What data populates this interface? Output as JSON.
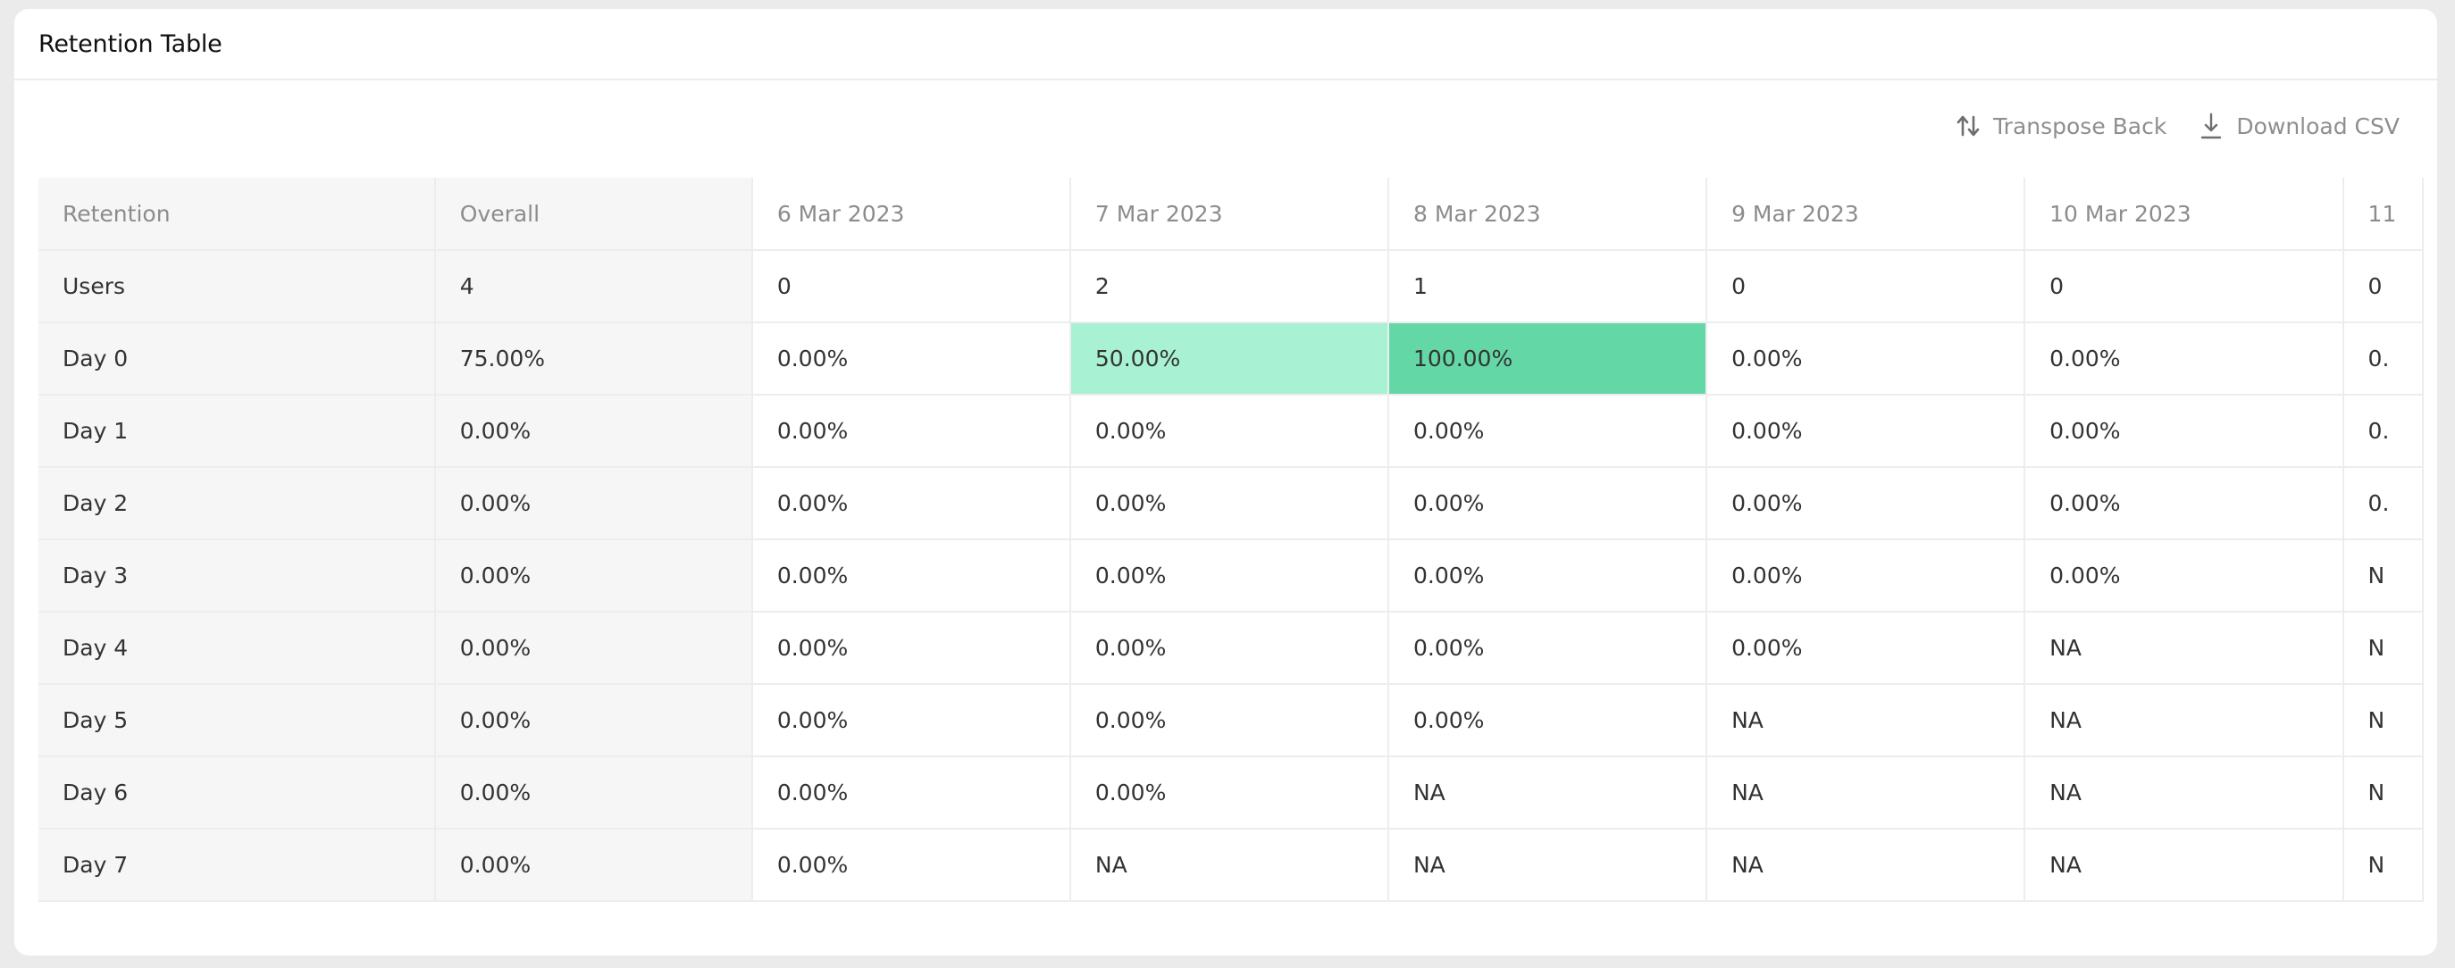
{
  "card": {
    "title": "Retention Table"
  },
  "toolbar": {
    "transpose_label": "Transpose Back",
    "transpose_icon": "transpose-arrows-icon",
    "download_label": "Download CSV",
    "download_icon": "download-icon"
  },
  "table": {
    "headers": [
      "Retention",
      "Overall",
      "6 Mar 2023",
      "7 Mar 2023",
      "8 Mar 2023",
      "9 Mar 2023",
      "10 Mar 2023",
      "11"
    ],
    "rows": [
      {
        "label": "Users",
        "cells": [
          "4",
          "0",
          "2",
          "1",
          "0",
          "0",
          "0"
        ]
      },
      {
        "label": "Day 0",
        "cells": [
          "75.00%",
          "0.00%",
          "50.00%",
          "100.00%",
          "0.00%",
          "0.00%",
          "0."
        ]
      },
      {
        "label": "Day 1",
        "cells": [
          "0.00%",
          "0.00%",
          "0.00%",
          "0.00%",
          "0.00%",
          "0.00%",
          "0."
        ]
      },
      {
        "label": "Day 2",
        "cells": [
          "0.00%",
          "0.00%",
          "0.00%",
          "0.00%",
          "0.00%",
          "0.00%",
          "0."
        ]
      },
      {
        "label": "Day 3",
        "cells": [
          "0.00%",
          "0.00%",
          "0.00%",
          "0.00%",
          "0.00%",
          "0.00%",
          "N"
        ]
      },
      {
        "label": "Day 4",
        "cells": [
          "0.00%",
          "0.00%",
          "0.00%",
          "0.00%",
          "0.00%",
          "NA",
          "N"
        ]
      },
      {
        "label": "Day 5",
        "cells": [
          "0.00%",
          "0.00%",
          "0.00%",
          "0.00%",
          "NA",
          "NA",
          "N"
        ]
      },
      {
        "label": "Day 6",
        "cells": [
          "0.00%",
          "0.00%",
          "0.00%",
          "NA",
          "NA",
          "NA",
          "N"
        ]
      },
      {
        "label": "Day 7",
        "cells": [
          "0.00%",
          "0.00%",
          "NA",
          "NA",
          "NA",
          "NA",
          "N"
        ]
      }
    ],
    "highlight_colors": {
      "mid": "#a8f2d3",
      "high": "#63d8a6"
    }
  }
}
